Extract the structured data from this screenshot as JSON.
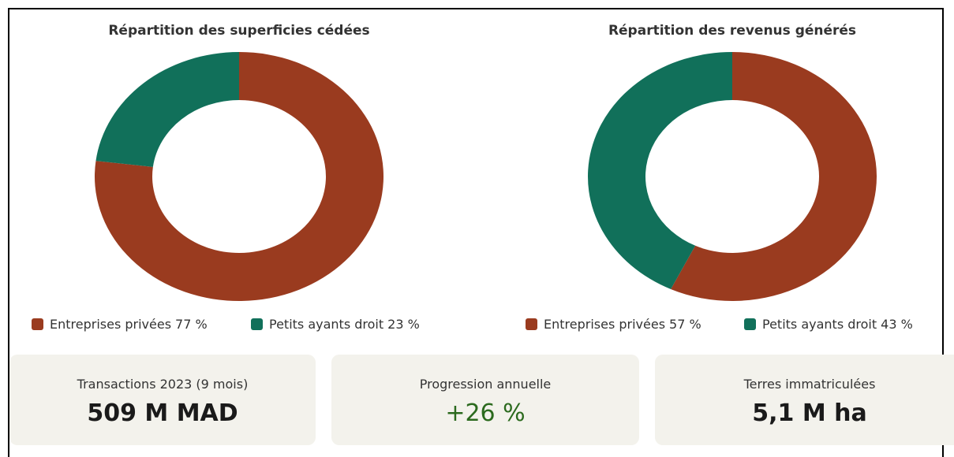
{
  "chart_data": [
    {
      "type": "pie",
      "title": "Répartition des superficies cédées",
      "categories": [
        "Entreprises privées",
        "Petits ayants droit"
      ],
      "values": [
        77,
        23
      ],
      "value_labels": [
        "77 %",
        "23 %"
      ],
      "colors": [
        "#9a3b1f",
        "#11705a"
      ]
    },
    {
      "type": "pie",
      "title": "Répartition des revenus générés",
      "categories": [
        "Entreprises privées",
        "Petits ayants droit"
      ],
      "values": [
        57,
        43
      ],
      "value_labels": [
        "57 %",
        "43 %"
      ],
      "colors": [
        "#9a3b1f",
        "#11705a"
      ]
    }
  ],
  "kpis": [
    {
      "label": "Transactions 2023 (9 mois)",
      "value": "509 M MAD"
    },
    {
      "label": "Progression annuelle",
      "value": "+26 %"
    },
    {
      "label": "Terres immatriculées",
      "value": "5,1 M ha"
    }
  ]
}
